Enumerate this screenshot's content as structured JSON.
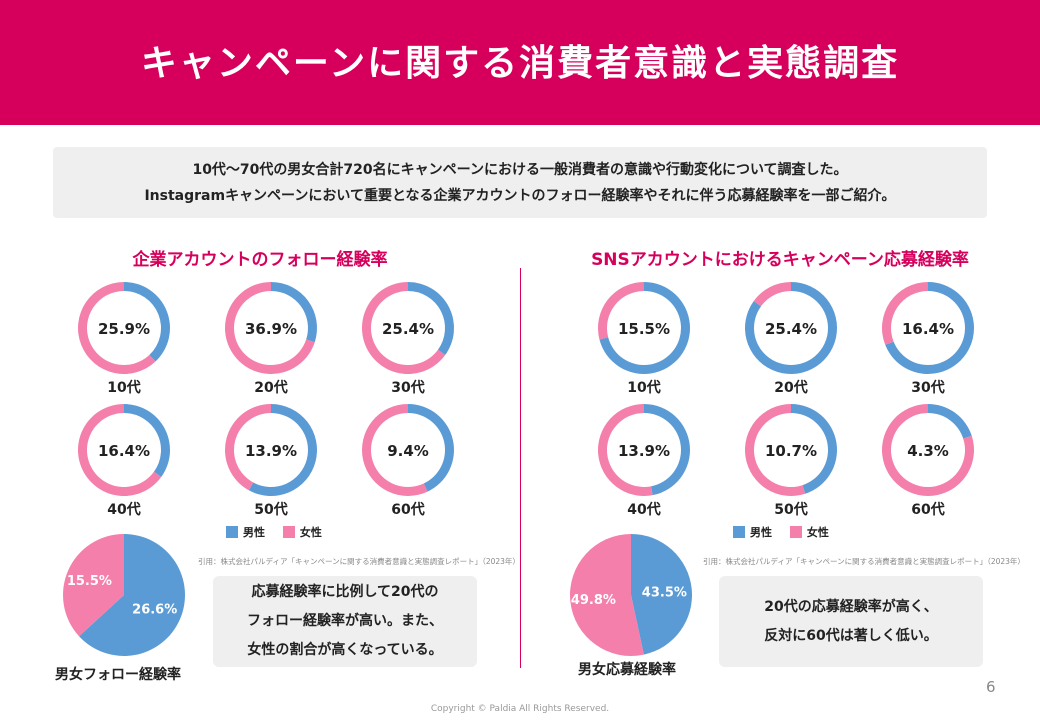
{
  "header": {
    "title": "キャンペーンに関する消費者意識と実態調査"
  },
  "intro": {
    "line1": "10代〜70代の男女合計720名にキャンペーンにおける一般消費者の意識や行動変化について調査した。",
    "line2": "Instagramキャンペーンにおいて重要となる企業アカウントのフォロー経験率やそれに伴う応募経験率を一部ご紹介。"
  },
  "colors": {
    "male": "#5b9bd5",
    "female": "#f47fab",
    "accent": "#d6005c"
  },
  "legend": {
    "male": "男性",
    "female": "女性"
  },
  "left": {
    "title": "企業アカウントのフォロー経験率",
    "citation": "引用：株式会社パルディア「キャンペーンに関する消費者意識と実態調査レポート」（2023年）",
    "note": [
      "応募経験率に比例して20代の",
      "フォロー経験率が高い。また、",
      "女性の割合が高くなっている。"
    ],
    "pie_label": "男女フォロー経験率"
  },
  "right": {
    "title": "SNSアカウントにおけるキャンペーン応募経験率",
    "citation": "引用：株式会社パルディア「キャンペーンに関する消費者意識と実態調査レポート」（2023年）",
    "note": [
      "20代の応募経験率が高く、",
      "反対に60代は著しく低い。"
    ],
    "pie_label": "男女応募経験率"
  },
  "chart_data": [
    {
      "type": "pie",
      "title": "企業アカウントのフォロー経験率",
      "categories": [
        "10代",
        "20代",
        "30代",
        "40代",
        "50代",
        "60代"
      ],
      "values": [
        25.9,
        36.9,
        25.4,
        16.4,
        13.9,
        9.4
      ],
      "value_labels": [
        "25.9%",
        "36.9%",
        "25.4%",
        "16.4%",
        "13.9%",
        "9.4%"
      ],
      "male_share": [
        0.38,
        0.3,
        0.35,
        0.35,
        0.58,
        0.43
      ],
      "summary": {
        "male": 26.6,
        "female": 15.5,
        "male_label": "26.6%",
        "female_label": "15.5%"
      }
    },
    {
      "type": "pie",
      "title": "SNSアカウントにおけるキャンペーン応募経験率",
      "categories": [
        "10代",
        "20代",
        "30代",
        "40代",
        "50代",
        "60代"
      ],
      "values": [
        15.5,
        25.4,
        16.4,
        13.9,
        10.7,
        4.3
      ],
      "value_labels": [
        "15.5%",
        "25.4%",
        "16.4%",
        "13.9%",
        "10.7%",
        "4.3%"
      ],
      "male_share": [
        0.71,
        0.85,
        0.69,
        0.47,
        0.45,
        0.2
      ],
      "summary": {
        "male": 43.5,
        "female": 49.8,
        "male_label": "43.5%",
        "female_label": "49.8%"
      }
    }
  ],
  "footer": {
    "page": "6",
    "copyright": "Copyright © Paldia All Rights Reserved."
  }
}
